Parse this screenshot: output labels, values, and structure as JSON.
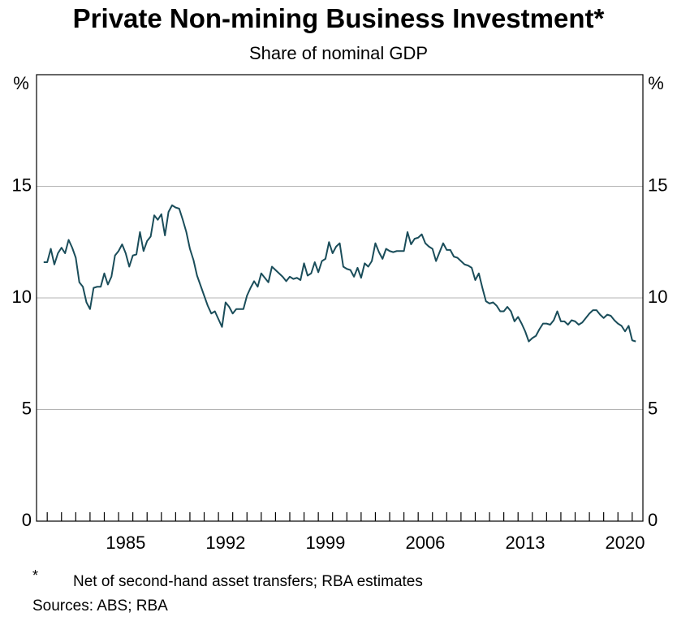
{
  "chart_data": {
    "type": "line",
    "title": "Private Non-mining Business Investment*",
    "subtitle": "Share of nominal GDP",
    "y_unit": "%",
    "footnote_marker": "*",
    "footnote": "Net of second-hand asset transfers; RBA estimates",
    "source": "Sources: ABS; RBA",
    "x": [
      1979.75,
      1980,
      1980.25,
      1980.5,
      1980.75,
      1981,
      1981.25,
      1981.5,
      1981.75,
      1982,
      1982.25,
      1982.5,
      1982.75,
      1983,
      1983.25,
      1983.5,
      1983.75,
      1984,
      1984.25,
      1984.5,
      1984.75,
      1985,
      1985.25,
      1985.5,
      1985.75,
      1986,
      1986.25,
      1986.5,
      1986.75,
      1987,
      1987.25,
      1987.5,
      1987.75,
      1988,
      1988.25,
      1988.5,
      1988.75,
      1989,
      1989.25,
      1989.5,
      1989.75,
      1990,
      1990.25,
      1990.5,
      1990.75,
      1991,
      1991.25,
      1991.5,
      1991.75,
      1992,
      1992.25,
      1992.5,
      1992.75,
      1993,
      1993.25,
      1993.5,
      1993.75,
      1994,
      1994.25,
      1994.5,
      1994.75,
      1995,
      1995.25,
      1995.5,
      1995.75,
      1996,
      1996.25,
      1996.5,
      1996.75,
      1997,
      1997.25,
      1997.5,
      1997.75,
      1998,
      1998.25,
      1998.5,
      1998.75,
      1999,
      1999.25,
      1999.5,
      1999.75,
      2000,
      2000.25,
      2000.5,
      2000.75,
      2001,
      2001.25,
      2001.5,
      2001.75,
      2002,
      2002.25,
      2002.5,
      2002.75,
      2003,
      2003.25,
      2003.5,
      2003.75,
      2004,
      2004.25,
      2004.5,
      2004.75,
      2005,
      2005.25,
      2005.5,
      2005.75,
      2006,
      2006.25,
      2006.5,
      2006.75,
      2007,
      2007.25,
      2007.5,
      2007.75,
      2008,
      2008.25,
      2008.5,
      2008.75,
      2009,
      2009.25,
      2009.5,
      2009.75,
      2010,
      2010.25,
      2010.5,
      2010.75,
      2011,
      2011.25,
      2011.5,
      2011.75,
      2012,
      2012.25,
      2012.5,
      2012.75,
      2013,
      2013.25,
      2013.5,
      2013.75,
      2014,
      2014.25,
      2014.5,
      2014.75,
      2015,
      2015.25,
      2015.5,
      2015.75,
      2016,
      2016.25,
      2016.5,
      2016.75,
      2017,
      2017.25,
      2017.5,
      2017.75,
      2018,
      2018.25,
      2018.5,
      2018.75,
      2019,
      2019.25,
      2019.5,
      2019.75,
      2020,
      2020.25,
      2020.5,
      2020.75,
      2021,
      2021.25
    ],
    "series": [
      {
        "color": "#1a4d5a",
        "values": [
          11.6,
          11.6,
          12.2,
          11.5,
          12.0,
          12.25,
          12.0,
          12.6,
          12.25,
          11.8,
          10.7,
          10.5,
          9.8,
          9.5,
          10.45,
          10.5,
          10.5,
          11.1,
          10.6,
          10.95,
          11.9,
          12.1,
          12.4,
          12.0,
          11.4,
          11.9,
          11.95,
          12.95,
          12.1,
          12.55,
          12.75,
          13.7,
          13.5,
          13.75,
          12.8,
          13.85,
          14.15,
          14.05,
          14.0,
          13.5,
          12.95,
          12.2,
          11.7,
          11.0,
          10.55,
          10.1,
          9.65,
          9.3,
          9.4,
          9.05,
          8.7,
          9.8,
          9.6,
          9.3,
          9.5,
          9.5,
          9.5,
          10.1,
          10.45,
          10.75,
          10.5,
          11.1,
          10.9,
          10.7,
          11.4,
          11.25,
          11.1,
          10.95,
          10.75,
          10.95,
          10.85,
          10.9,
          10.8,
          11.55,
          11.0,
          11.1,
          11.6,
          11.15,
          11.65,
          11.75,
          12.5,
          12.0,
          12.3,
          12.45,
          11.4,
          11.3,
          11.25,
          10.95,
          11.35,
          10.9,
          11.55,
          11.4,
          11.65,
          12.45,
          12.05,
          11.75,
          12.2,
          12.1,
          12.05,
          12.1,
          12.1,
          12.1,
          12.95,
          12.4,
          12.65,
          12.7,
          12.85,
          12.45,
          12.3,
          12.2,
          11.65,
          12.05,
          12.45,
          12.15,
          12.15,
          11.85,
          11.8,
          11.65,
          11.5,
          11.45,
          11.35,
          10.8,
          11.1,
          10.45,
          9.85,
          9.75,
          9.8,
          9.65,
          9.4,
          9.4,
          9.6,
          9.4,
          8.95,
          9.15,
          8.85,
          8.5,
          8.05,
          8.2,
          8.3,
          8.6,
          8.85,
          8.85,
          8.8,
          9.0,
          9.4,
          8.95,
          8.95,
          8.8,
          9.0,
          8.95,
          8.8,
          8.9,
          9.1,
          9.3,
          9.45,
          9.45,
          9.25,
          9.1,
          9.25,
          9.2,
          9.0,
          8.85,
          8.75,
          8.5,
          8.75,
          8.1,
          8.05
        ]
      }
    ],
    "xlim": [
      1979.25,
      2021.75
    ],
    "xticks": [
      1985,
      1992,
      1999,
      2006,
      2013,
      2020
    ],
    "x_minor_ticks": [
      1980,
      1981,
      1982,
      1983,
      1984,
      1985,
      1986,
      1987,
      1988,
      1989,
      1990,
      1991,
      1992,
      1993,
      1994,
      1995,
      1996,
      1997,
      1998,
      1999,
      2000,
      2001,
      2002,
      2003,
      2004,
      2005,
      2006,
      2007,
      2008,
      2009,
      2010,
      2011,
      2012,
      2013,
      2014,
      2015,
      2016,
      2017,
      2018,
      2019,
      2020,
      2021
    ],
    "ylim": [
      0,
      20
    ],
    "yticks": [
      0,
      5,
      10,
      15
    ],
    "grid": true
  }
}
